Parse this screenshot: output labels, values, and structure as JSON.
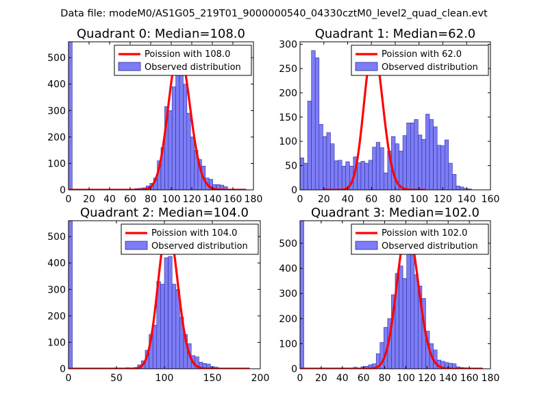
{
  "figure_title": "Data file: modeM0/AS1G05_219T01_9000000540_04330cztM0_level2_quad_clean.evt",
  "colors": {
    "bar_fill": "#7d7df5",
    "bar_stroke": "#2b2b9e",
    "poisson_line": "#ff0000"
  },
  "chart_data": [
    {
      "type": "bar",
      "title": "Quadrant 0: Median=108.0",
      "xlim": [
        0,
        180
      ],
      "ylim": [
        0,
        560
      ],
      "xticks": [
        0,
        20,
        40,
        60,
        80,
        100,
        120,
        140,
        160,
        180
      ],
      "xtick_labels": [
        "0",
        "20",
        "40",
        "60",
        "80",
        "100",
        "120",
        "140",
        "160",
        "180"
      ],
      "yticks": [
        0,
        100,
        200,
        300,
        400,
        500
      ],
      "ytick_labels": [
        "0",
        "100",
        "200",
        "300",
        "400",
        "500"
      ],
      "bin_width": 3.6,
      "bins": [
        [
          0,
          560
        ],
        [
          64.8,
          5
        ],
        [
          68.4,
          6
        ],
        [
          72,
          8
        ],
        [
          75.6,
          15
        ],
        [
          79.2,
          25
        ],
        [
          82.8,
          45
        ],
        [
          86.4,
          110
        ],
        [
          90,
          160
        ],
        [
          93.6,
          315
        ],
        [
          97.2,
          300
        ],
        [
          100.8,
          390
        ],
        [
          104.4,
          450
        ],
        [
          108,
          465
        ],
        [
          111.6,
          400
        ],
        [
          115.2,
          290
        ],
        [
          118.8,
          200
        ],
        [
          122.4,
          150
        ],
        [
          126,
          115
        ],
        [
          129.6,
          90
        ],
        [
          133.2,
          45
        ],
        [
          136.8,
          40
        ],
        [
          140.4,
          20
        ],
        [
          144,
          20
        ],
        [
          147.6,
          18
        ],
        [
          151.2,
          12
        ],
        [
          154.8,
          3
        ]
      ],
      "poisson_mean": 108.0,
      "poisson_peak": 530,
      "poisson_x_range": [
        0,
        172
      ],
      "legend": {
        "position": "top-right",
        "line_label": "Poission with 108.0",
        "bar_label": "Observed distribution"
      }
    },
    {
      "type": "bar",
      "title": "Quadrant 1: Median=62.0",
      "xlim": [
        0,
        160
      ],
      "ylim": [
        0,
        305
      ],
      "xticks": [
        0,
        20,
        40,
        60,
        80,
        100,
        120,
        140,
        160
      ],
      "xtick_labels": [
        "0",
        "20",
        "40",
        "60",
        "80",
        "100",
        "120",
        "140",
        "160"
      ],
      "yticks": [
        0,
        50,
        100,
        150,
        200,
        250,
        300
      ],
      "ytick_labels": [
        "0",
        "50",
        "100",
        "150",
        "200",
        "250",
        "300"
      ],
      "bin_width": 3.2,
      "bins": [
        [
          0,
          66
        ],
        [
          3.2,
          55
        ],
        [
          6.4,
          183
        ],
        [
          9.6,
          287
        ],
        [
          12.8,
          272
        ],
        [
          16,
          135
        ],
        [
          19.2,
          110
        ],
        [
          22.4,
          118
        ],
        [
          25.6,
          95
        ],
        [
          28.8,
          60
        ],
        [
          32,
          61
        ],
        [
          35.2,
          49
        ],
        [
          38.4,
          58
        ],
        [
          41.6,
          49
        ],
        [
          44.8,
          68
        ],
        [
          48,
          56
        ],
        [
          51.2,
          59
        ],
        [
          54.4,
          55
        ],
        [
          57.6,
          61
        ],
        [
          60.8,
          88
        ],
        [
          64,
          98
        ],
        [
          67.2,
          87
        ],
        [
          70.4,
          35
        ],
        [
          73.6,
          80
        ],
        [
          76.8,
          110
        ],
        [
          80,
          95
        ],
        [
          83.2,
          80
        ],
        [
          86.4,
          112
        ],
        [
          89.6,
          138
        ],
        [
          92.8,
          138
        ],
        [
          96,
          145
        ],
        [
          99.2,
          113
        ],
        [
          102.4,
          104
        ],
        [
          105.6,
          156
        ],
        [
          108.8,
          145
        ],
        [
          112,
          130
        ],
        [
          115.2,
          92
        ],
        [
          118.4,
          91
        ],
        [
          121.6,
          103
        ],
        [
          124.8,
          55
        ],
        [
          128,
          32
        ],
        [
          131.2,
          8
        ],
        [
          134.4,
          6
        ],
        [
          137.6,
          3
        ],
        [
          140.8,
          2
        ]
      ],
      "poisson_mean": 62.0,
      "poisson_peak": 295,
      "poisson_x_range": [
        20,
        105
      ],
      "legend": {
        "position": "top-right",
        "line_label": "Poission with 62.0",
        "bar_label": "Observed distribution"
      }
    },
    {
      "type": "bar",
      "title": "Quadrant 2: Median=104.0",
      "xlim": [
        0,
        200
      ],
      "ylim": [
        0,
        560
      ],
      "xticks": [
        0,
        50,
        100,
        150,
        200
      ],
      "xtick_labels": [
        "0",
        "50",
        "100",
        "150",
        "200"
      ],
      "yticks": [
        0,
        100,
        200,
        300,
        400,
        500
      ],
      "ytick_labels": [
        "0",
        "100",
        "200",
        "300",
        "400",
        "500"
      ],
      "bin_width": 4,
      "bins": [
        [
          0,
          560
        ],
        [
          60,
          4
        ],
        [
          64,
          3
        ],
        [
          68,
          5
        ],
        [
          72,
          15
        ],
        [
          76,
          30
        ],
        [
          80,
          70
        ],
        [
          84,
          130
        ],
        [
          88,
          165
        ],
        [
          92,
          330
        ],
        [
          96,
          320
        ],
        [
          100,
          420
        ],
        [
          104,
          425
        ],
        [
          108,
          320
        ],
        [
          112,
          300
        ],
        [
          116,
          195
        ],
        [
          120,
          130
        ],
        [
          124,
          95
        ],
        [
          128,
          50
        ],
        [
          132,
          45
        ],
        [
          136,
          25
        ],
        [
          140,
          20
        ],
        [
          144,
          18
        ],
        [
          148,
          8
        ],
        [
          152,
          6
        ]
      ],
      "poisson_mean": 104.0,
      "poisson_peak": 540,
      "poisson_x_range": [
        0,
        188
      ],
      "legend": {
        "position": "top-right",
        "line_label": "Poission with 104.0",
        "bar_label": "Observed distribution"
      }
    },
    {
      "type": "bar",
      "title": "Quadrant 3: Median=102.0",
      "xlim": [
        0,
        180
      ],
      "ylim": [
        0,
        590
      ],
      "xticks": [
        0,
        20,
        40,
        60,
        80,
        100,
        120,
        140,
        160,
        180
      ],
      "xtick_labels": [
        "0",
        "20",
        "40",
        "60",
        "80",
        "100",
        "120",
        "140",
        "160",
        "180"
      ],
      "yticks": [
        0,
        100,
        200,
        300,
        400,
        500
      ],
      "ytick_labels": [
        "0",
        "100",
        "200",
        "300",
        "400",
        "500"
      ],
      "bin_width": 3.6,
      "bins": [
        [
          0,
          590
        ],
        [
          50.4,
          6
        ],
        [
          57.6,
          8
        ],
        [
          61.2,
          10
        ],
        [
          64.8,
          16
        ],
        [
          68.4,
          20
        ],
        [
          72,
          60
        ],
        [
          75.6,
          105
        ],
        [
          79.2,
          165
        ],
        [
          82.8,
          200
        ],
        [
          86.4,
          295
        ],
        [
          90,
          380
        ],
        [
          93.6,
          410
        ],
        [
          97.2,
          360
        ],
        [
          100.8,
          530
        ],
        [
          104.4,
          510
        ],
        [
          108,
          375
        ],
        [
          111.6,
          330
        ],
        [
          115.2,
          280
        ],
        [
          118.8,
          150
        ],
        [
          122.4,
          100
        ],
        [
          126,
          75
        ],
        [
          129.6,
          35
        ],
        [
          133.2,
          30
        ],
        [
          136.8,
          25
        ],
        [
          140.4,
          22
        ],
        [
          144,
          20
        ],
        [
          147.6,
          8
        ],
        [
          151.2,
          5
        ],
        [
          154.8,
          4
        ]
      ],
      "poisson_mean": 102.0,
      "poisson_peak": 560,
      "poisson_x_range": [
        0,
        172
      ],
      "legend": {
        "position": "top-right",
        "line_label": "Poission with 102.0",
        "bar_label": "Observed distribution"
      }
    }
  ]
}
